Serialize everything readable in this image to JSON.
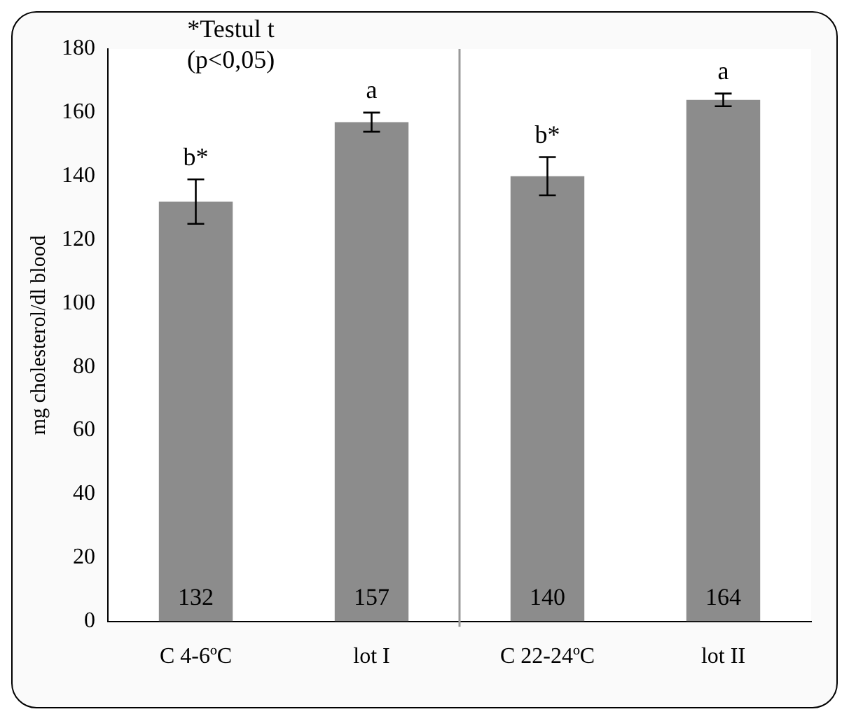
{
  "chart_data": {
    "type": "bar",
    "ylabel": "mg cholesterol/dl blood",
    "categories": [
      "C 4-6ºC",
      "lot I",
      "C 22-24ºC",
      "lot II"
    ],
    "values": [
      132,
      157,
      140,
      164
    ],
    "errors": [
      7,
      3,
      6,
      2
    ],
    "color": "#8c8c8c",
    "ylim": [
      0,
      180
    ],
    "yticks": [
      0,
      20,
      40,
      60,
      80,
      100,
      120,
      140,
      160,
      180
    ],
    "grid": false,
    "legend": false,
    "data_labels": true,
    "annotations": [
      "*Testul t",
      "(p<0,05)",
      {
        "text": "b*",
        "x": "C 4-6ºC",
        "y": 139
      },
      {
        "text": "a",
        "x": "lot I",
        "y": 160
      },
      {
        "text": "b*",
        "x": "C 22-24ºC",
        "y": 146
      },
      {
        "text": "a",
        "x": "lot II",
        "y": 166
      }
    ]
  }
}
